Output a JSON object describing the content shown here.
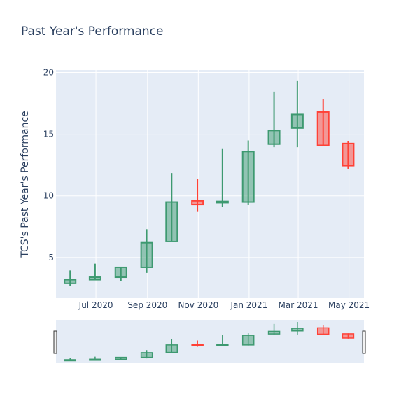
{
  "chart_data": {
    "type": "candlestick",
    "title": "Past Year's Performance",
    "ylabel": "TCS's Past Year's Performance",
    "xlabel": "",
    "ylim": [
      1.7,
      20.2
    ],
    "xlim": [
      "2020-05-14",
      "2021-05-19"
    ],
    "y_ticks": [
      5,
      10,
      15,
      20
    ],
    "x_ticks": [
      {
        "date": "2020-07-01",
        "label": "Jul 2020"
      },
      {
        "date": "2020-09-01",
        "label": "Sep 2020"
      },
      {
        "date": "2020-11-01",
        "label": "Nov 2020"
      },
      {
        "date": "2021-01-01",
        "label": "Jan 2021"
      },
      {
        "date": "2021-03-01",
        "label": "Mar 2021"
      },
      {
        "date": "2021-05-01",
        "label": "May 2021"
      }
    ],
    "increasing_color": "#3d9970",
    "decreasing_color": "#ff4136",
    "grid": true,
    "range_slider": true,
    "candles": [
      {
        "date": "2020-05-31",
        "open": 2.9,
        "high": 3.95,
        "low": 2.7,
        "close": 3.2
      },
      {
        "date": "2020-06-30",
        "open": 3.2,
        "high": 4.5,
        "low": 3.15,
        "close": 3.4
      },
      {
        "date": "2020-07-31",
        "open": 3.4,
        "high": 4.25,
        "low": 3.1,
        "close": 4.2
      },
      {
        "date": "2020-08-31",
        "open": 4.2,
        "high": 7.3,
        "low": 3.75,
        "close": 6.2
      },
      {
        "date": "2020-09-30",
        "open": 6.3,
        "high": 11.85,
        "low": 6.3,
        "close": 9.5
      },
      {
        "date": "2020-10-31",
        "open": 9.6,
        "high": 11.4,
        "low": 8.7,
        "close": 9.3
      },
      {
        "date": "2020-11-30",
        "open": 9.45,
        "high": 13.8,
        "low": 9.1,
        "close": 9.55
      },
      {
        "date": "2020-12-31",
        "open": 9.5,
        "high": 14.5,
        "low": 9.25,
        "close": 13.6
      },
      {
        "date": "2021-01-31",
        "open": 14.2,
        "high": 18.45,
        "low": 13.95,
        "close": 15.3
      },
      {
        "date": "2021-02-28",
        "open": 15.5,
        "high": 19.3,
        "low": 13.95,
        "close": 16.6
      },
      {
        "date": "2021-03-31",
        "open": 16.8,
        "high": 17.85,
        "low": 14.05,
        "close": 14.1
      },
      {
        "date": "2021-04-30",
        "open": 14.25,
        "high": 14.45,
        "low": 12.2,
        "close": 12.45
      }
    ]
  }
}
